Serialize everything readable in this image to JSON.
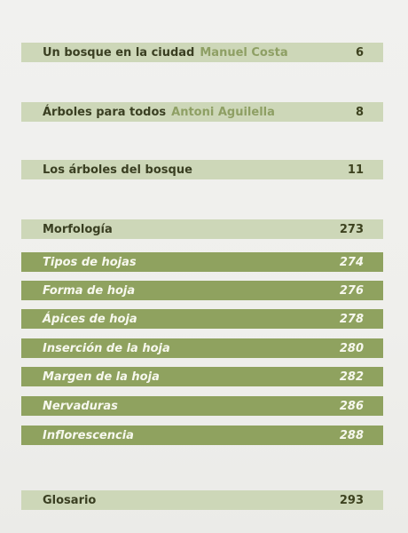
{
  "toc": {
    "intro": [
      {
        "title": "Un bosque en la ciudad",
        "author": "Manuel Costa",
        "page": "6"
      },
      {
        "title": "Árboles para todos",
        "author": "Antoni Aguilella",
        "page": "8"
      },
      {
        "title": "Los árboles del bosque",
        "author": "",
        "page": "11"
      }
    ],
    "morfologia": {
      "title": "Morfología",
      "page": "273"
    },
    "subsections": [
      {
        "title": "Tipos de hojas",
        "page": "274"
      },
      {
        "title": "Forma de hoja",
        "page": "276"
      },
      {
        "title": "Ápices de hoja",
        "page": "278"
      },
      {
        "title": "Inserción de la hoja",
        "page": "280"
      },
      {
        "title": "Margen de la hoja",
        "page": "282"
      },
      {
        "title": "Nervaduras",
        "page": "286"
      },
      {
        "title": "Inflorescencia",
        "page": "288"
      }
    ],
    "glosario": {
      "title": "Glosario",
      "page": "293"
    }
  }
}
